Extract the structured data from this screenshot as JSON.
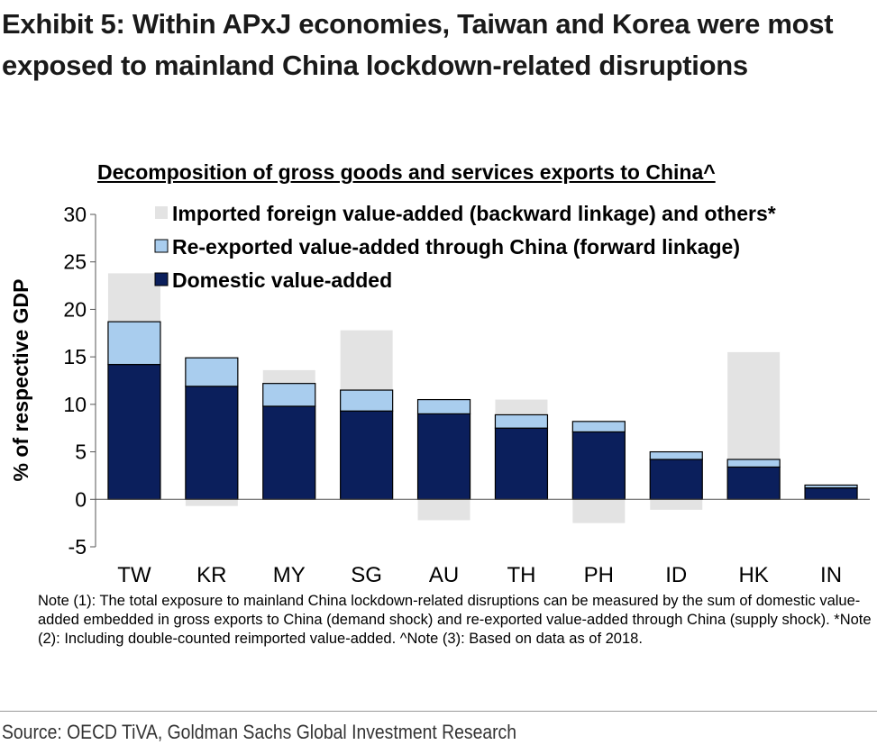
{
  "exhibit_title": "Exhibit 5: Within APxJ economies, Taiwan and Korea were most exposed to mainland China lockdown-related disruptions",
  "note": "Note (1): The total exposure to mainland China lockdown-related disruptions can be measured by the sum of domestic value-added embedded in gross exports to China (demand shock) and re-exported value-added through China (supply shock). *Note (2): Including double-counted reimported value-added. ^Note (3): Based on data as of 2018.",
  "source": "Source: OECD TiVA, Goldman Sachs Global Investment Research",
  "chart_data": {
    "type": "bar",
    "stacked": true,
    "title": "Decomposition of gross goods and services exports to China^",
    "ylabel": "% of respective GDP",
    "xlabel": "",
    "ylim": [
      -5,
      30
    ],
    "yticks": [
      "30",
      "25",
      "20",
      "15",
      "10",
      "5",
      "0",
      "-5"
    ],
    "grid": false,
    "legend_position": "top-right",
    "categories": [
      "TW",
      "KR",
      "MY",
      "SG",
      "AU",
      "TH",
      "PH",
      "ID",
      "HK",
      "IN"
    ],
    "series": [
      {
        "name": "Domestic value-added",
        "color": "#0b1f5c",
        "values": [
          14.2,
          11.9,
          9.8,
          9.3,
          9.0,
          7.5,
          7.1,
          4.2,
          3.4,
          1.2
        ]
      },
      {
        "name": "Re-exported value-added through China (forward linkage)",
        "color": "#a9cdee",
        "values": [
          4.5,
          3.0,
          2.4,
          2.2,
          1.5,
          1.4,
          1.1,
          0.8,
          0.8,
          0.3
        ]
      },
      {
        "name": "Imported foreign value-added (backward linkage) and others*",
        "color": "#e3e3e3",
        "values": [
          5.1,
          -0.7,
          1.4,
          6.3,
          -2.2,
          1.6,
          -2.5,
          -1.1,
          11.3,
          0.0
        ]
      }
    ]
  }
}
